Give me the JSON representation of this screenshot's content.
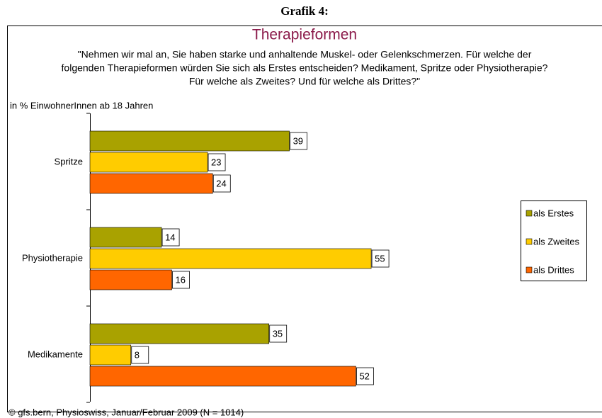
{
  "header": "Grafik 4:",
  "chart_data": {
    "type": "hbar",
    "title": "Therapieformen",
    "subtitle_lines": [
      "\"Nehmen wir mal an, Sie haben starke und anhaltende Muskel- oder Gelenkschmerzen. Für welche der",
      "folgenden Therapieformen würden Sie sich als Erstes entscheiden? Medikament, Spritze oder Physiotherapie?",
      "Für welche als Zweites? Und für welche als Drittes?\""
    ],
    "axis_label": "in % EinwohnerInnen ab 18 Jahren",
    "categories": [
      "Spritze",
      "Physiotherapie",
      "Medikamente"
    ],
    "series": [
      {
        "name": "als Erstes",
        "color": "#a9a200",
        "values": [
          39,
          14,
          35
        ]
      },
      {
        "name": "als Zweites",
        "color": "#ffcc00",
        "values": [
          23,
          55,
          8
        ]
      },
      {
        "name": "als Drittes",
        "color": "#ff6600",
        "values": [
          24,
          16,
          52
        ]
      }
    ],
    "xlim": [
      0,
      100
    ],
    "legend": "right",
    "source": "© gfs.bern, Physioswiss, Januar/Februar 2009 (N = 1014)"
  }
}
